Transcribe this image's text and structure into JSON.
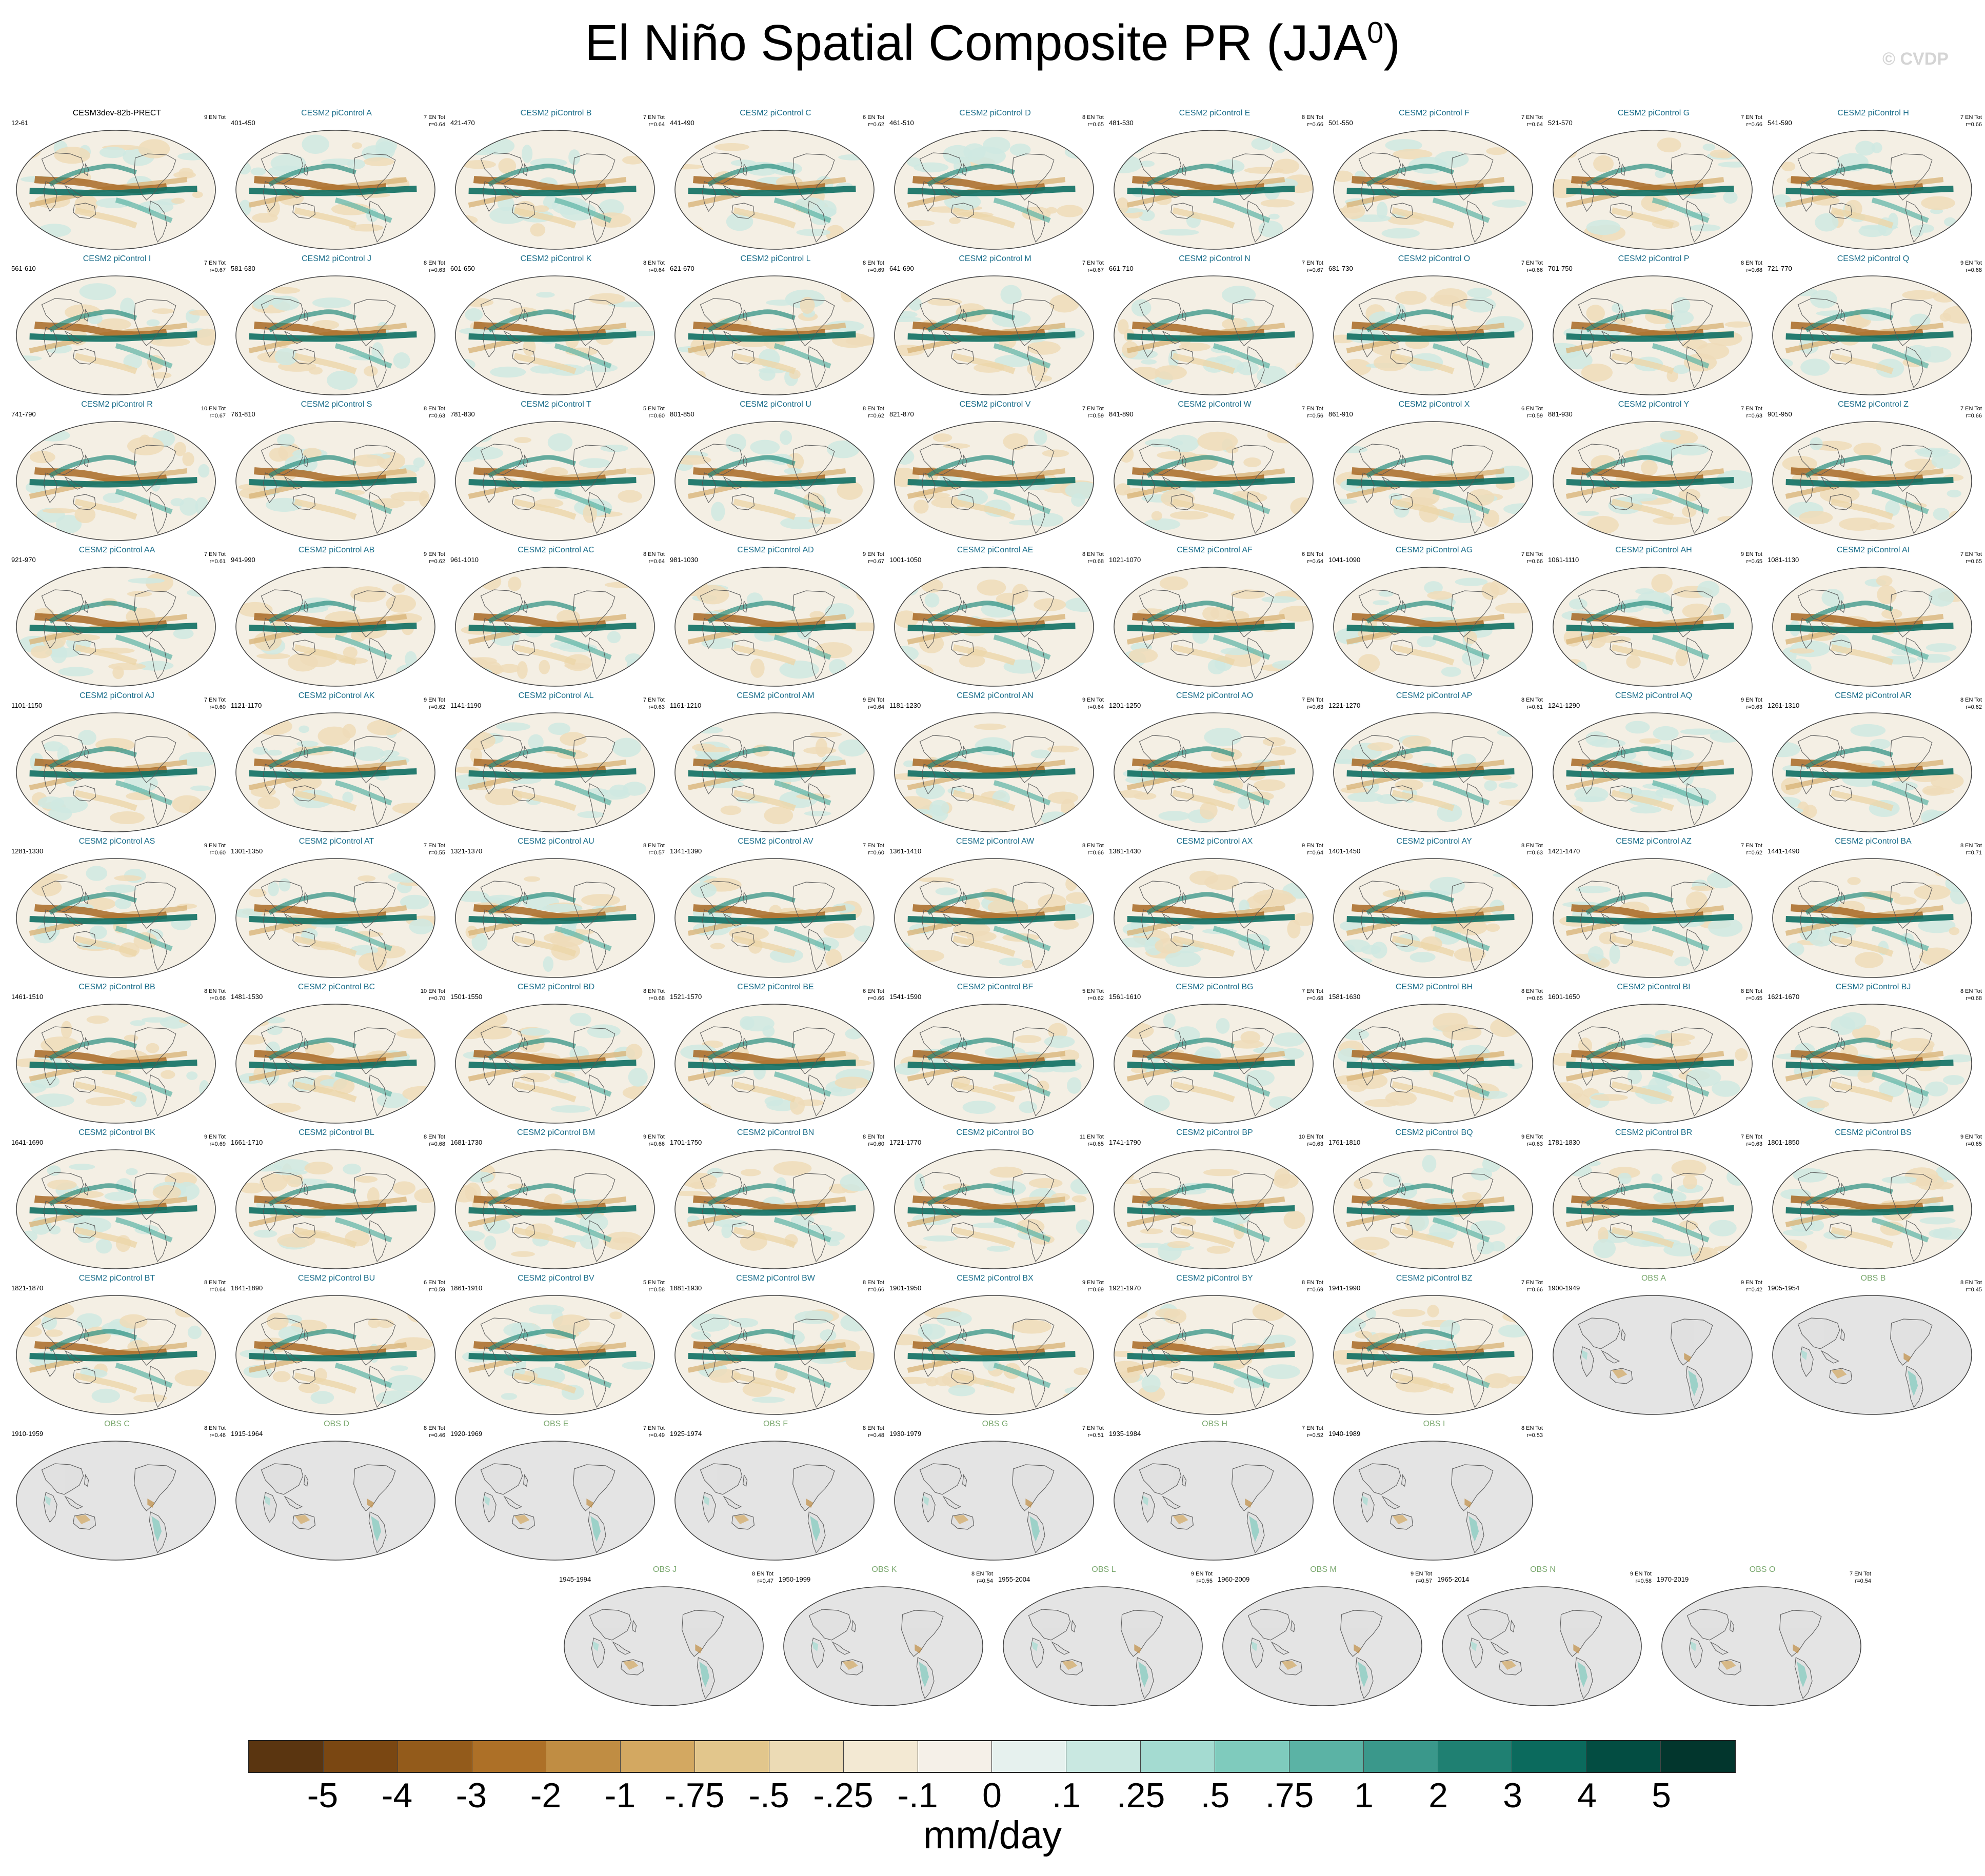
{
  "title": "El Niño Spatial Composite PR (JJA",
  "title_sup": "0",
  "title_close": ")",
  "credit": "© CVDP",
  "panels": [
    {
      "name": "CESM3dev-82b-PRECT",
      "range": "12-61",
      "count": "9 EN Tot",
      "r": "",
      "kind": "cesm3"
    },
    {
      "name": "CESM2 piControl A",
      "range": "401-450",
      "count": "7 EN Tot",
      "r": "r=0.64",
      "kind": "model"
    },
    {
      "name": "CESM2 piControl B",
      "range": "421-470",
      "count": "7 EN Tot",
      "r": "r=0.64",
      "kind": "model"
    },
    {
      "name": "CESM2 piControl C",
      "range": "441-490",
      "count": "6 EN Tot",
      "r": "r=0.62",
      "kind": "model"
    },
    {
      "name": "CESM2 piControl D",
      "range": "461-510",
      "count": "8 EN Tot",
      "r": "r=0.65",
      "kind": "model"
    },
    {
      "name": "CESM2 piControl E",
      "range": "481-530",
      "count": "8 EN Tot",
      "r": "r=0.66",
      "kind": "model"
    },
    {
      "name": "CESM2 piControl F",
      "range": "501-550",
      "count": "7 EN Tot",
      "r": "r=0.64",
      "kind": "model"
    },
    {
      "name": "CESM2 piControl G",
      "range": "521-570",
      "count": "7 EN Tot",
      "r": "r=0.66",
      "kind": "model"
    },
    {
      "name": "CESM2 piControl H",
      "range": "541-590",
      "count": "7 EN Tot",
      "r": "r=0.66",
      "kind": "model"
    },
    {
      "name": "CESM2 piControl I",
      "range": "561-610",
      "count": "7 EN Tot",
      "r": "r=0.67",
      "kind": "model"
    },
    {
      "name": "CESM2 piControl J",
      "range": "581-630",
      "count": "8 EN Tot",
      "r": "r=0.63",
      "kind": "model"
    },
    {
      "name": "CESM2 piControl K",
      "range": "601-650",
      "count": "8 EN Tot",
      "r": "r=0.64",
      "kind": "model"
    },
    {
      "name": "CESM2 piControl L",
      "range": "621-670",
      "count": "8 EN Tot",
      "r": "r=0.69",
      "kind": "model"
    },
    {
      "name": "CESM2 piControl M",
      "range": "641-690",
      "count": "7 EN Tot",
      "r": "r=0.67",
      "kind": "model"
    },
    {
      "name": "CESM2 piControl N",
      "range": "661-710",
      "count": "7 EN Tot",
      "r": "r=0.67",
      "kind": "model"
    },
    {
      "name": "CESM2 piControl O",
      "range": "681-730",
      "count": "7 EN Tot",
      "r": "r=0.66",
      "kind": "model"
    },
    {
      "name": "CESM2 piControl P",
      "range": "701-750",
      "count": "8 EN Tot",
      "r": "r=0.68",
      "kind": "model"
    },
    {
      "name": "CESM2 piControl Q",
      "range": "721-770",
      "count": "9 EN Tot",
      "r": "r=0.68",
      "kind": "model"
    },
    {
      "name": "CESM2 piControl R",
      "range": "741-790",
      "count": "10 EN Tot",
      "r": "r=0.67",
      "kind": "model"
    },
    {
      "name": "CESM2 piControl S",
      "range": "761-810",
      "count": "8 EN Tot",
      "r": "r=0.63",
      "kind": "model"
    },
    {
      "name": "CESM2 piControl T",
      "range": "781-830",
      "count": "5 EN Tot",
      "r": "r=0.60",
      "kind": "model"
    },
    {
      "name": "CESM2 piControl U",
      "range": "801-850",
      "count": "8 EN Tot",
      "r": "r=0.62",
      "kind": "model"
    },
    {
      "name": "CESM2 piControl V",
      "range": "821-870",
      "count": "7 EN Tot",
      "r": "r=0.59",
      "kind": "model"
    },
    {
      "name": "CESM2 piControl W",
      "range": "841-890",
      "count": "7 EN Tot",
      "r": "r=0.56",
      "kind": "model"
    },
    {
      "name": "CESM2 piControl X",
      "range": "861-910",
      "count": "6 EN Tot",
      "r": "r=0.59",
      "kind": "model"
    },
    {
      "name": "CESM2 piControl Y",
      "range": "881-930",
      "count": "7 EN Tot",
      "r": "r=0.63",
      "kind": "model"
    },
    {
      "name": "CESM2 piControl Z",
      "range": "901-950",
      "count": "7 EN Tot",
      "r": "r=0.66",
      "kind": "model"
    },
    {
      "name": "CESM2 piControl AA",
      "range": "921-970",
      "count": "7 EN Tot",
      "r": "r=0.61",
      "kind": "model"
    },
    {
      "name": "CESM2 piControl AB",
      "range": "941-990",
      "count": "9 EN Tot",
      "r": "r=0.62",
      "kind": "model"
    },
    {
      "name": "CESM2 piControl AC",
      "range": "961-1010",
      "count": "8 EN Tot",
      "r": "r=0.64",
      "kind": "model"
    },
    {
      "name": "CESM2 piControl AD",
      "range": "981-1030",
      "count": "9 EN Tot",
      "r": "r=0.67",
      "kind": "model"
    },
    {
      "name": "CESM2 piControl AE",
      "range": "1001-1050",
      "count": "8 EN Tot",
      "r": "r=0.68",
      "kind": "model"
    },
    {
      "name": "CESM2 piControl AF",
      "range": "1021-1070",
      "count": "6 EN Tot",
      "r": "r=0.64",
      "kind": "model"
    },
    {
      "name": "CESM2 piControl AG",
      "range": "1041-1090",
      "count": "7 EN Tot",
      "r": "r=0.66",
      "kind": "model"
    },
    {
      "name": "CESM2 piControl AH",
      "range": "1061-1110",
      "count": "9 EN Tot",
      "r": "r=0.65",
      "kind": "model"
    },
    {
      "name": "CESM2 piControl AI",
      "range": "1081-1130",
      "count": "7 EN Tot",
      "r": "r=0.65",
      "kind": "model"
    },
    {
      "name": "CESM2 piControl AJ",
      "range": "1101-1150",
      "count": "7 EN Tot",
      "r": "r=0.60",
      "kind": "model"
    },
    {
      "name": "CESM2 piControl AK",
      "range": "1121-1170",
      "count": "9 EN Tot",
      "r": "r=0.62",
      "kind": "model"
    },
    {
      "name": "CESM2 piControl AL",
      "range": "1141-1190",
      "count": "7 EN Tot",
      "r": "r=0.63",
      "kind": "model"
    },
    {
      "name": "CESM2 piControl AM",
      "range": "1161-1210",
      "count": "9 EN Tot",
      "r": "r=0.64",
      "kind": "model"
    },
    {
      "name": "CESM2 piControl AN",
      "range": "1181-1230",
      "count": "9 EN Tot",
      "r": "r=0.64",
      "kind": "model"
    },
    {
      "name": "CESM2 piControl AO",
      "range": "1201-1250",
      "count": "7 EN Tot",
      "r": "r=0.63",
      "kind": "model"
    },
    {
      "name": "CESM2 piControl AP",
      "range": "1221-1270",
      "count": "8 EN Tot",
      "r": "r=0.61",
      "kind": "model"
    },
    {
      "name": "CESM2 piControl AQ",
      "range": "1241-1290",
      "count": "9 EN Tot",
      "r": "r=0.63",
      "kind": "model"
    },
    {
      "name": "CESM2 piControl AR",
      "range": "1261-1310",
      "count": "8 EN Tot",
      "r": "r=0.62",
      "kind": "model"
    },
    {
      "name": "CESM2 piControl AS",
      "range": "1281-1330",
      "count": "9 EN Tot",
      "r": "r=0.60",
      "kind": "model"
    },
    {
      "name": "CESM2 piControl AT",
      "range": "1301-1350",
      "count": "7 EN Tot",
      "r": "r=0.55",
      "kind": "model"
    },
    {
      "name": "CESM2 piControl AU",
      "range": "1321-1370",
      "count": "8 EN Tot",
      "r": "r=0.57",
      "kind": "model"
    },
    {
      "name": "CESM2 piControl AV",
      "range": "1341-1390",
      "count": "7 EN Tot",
      "r": "r=0.60",
      "kind": "model"
    },
    {
      "name": "CESM2 piControl AW",
      "range": "1361-1410",
      "count": "8 EN Tot",
      "r": "r=0.66",
      "kind": "model"
    },
    {
      "name": "CESM2 piControl AX",
      "range": "1381-1430",
      "count": "9 EN Tot",
      "r": "r=0.64",
      "kind": "model"
    },
    {
      "name": "CESM2 piControl AY",
      "range": "1401-1450",
      "count": "8 EN Tot",
      "r": "r=0.63",
      "kind": "model"
    },
    {
      "name": "CESM2 piControl AZ",
      "range": "1421-1470",
      "count": "7 EN Tot",
      "r": "r=0.62",
      "kind": "model"
    },
    {
      "name": "CESM2 piControl BA",
      "range": "1441-1490",
      "count": "8 EN Tot",
      "r": "r=0.71",
      "kind": "model"
    },
    {
      "name": "CESM2 piControl BB",
      "range": "1461-1510",
      "count": "8 EN Tot",
      "r": "r=0.66",
      "kind": "model"
    },
    {
      "name": "CESM2 piControl BC",
      "range": "1481-1530",
      "count": "10 EN Tot",
      "r": "r=0.70",
      "kind": "model"
    },
    {
      "name": "CESM2 piControl BD",
      "range": "1501-1550",
      "count": "8 EN Tot",
      "r": "r=0.68",
      "kind": "model"
    },
    {
      "name": "CESM2 piControl BE",
      "range": "1521-1570",
      "count": "6 EN Tot",
      "r": "r=0.66",
      "kind": "model"
    },
    {
      "name": "CESM2 piControl BF",
      "range": "1541-1590",
      "count": "5 EN Tot",
      "r": "r=0.62",
      "kind": "model"
    },
    {
      "name": "CESM2 piControl BG",
      "range": "1561-1610",
      "count": "7 EN Tot",
      "r": "r=0.68",
      "kind": "model"
    },
    {
      "name": "CESM2 piControl BH",
      "range": "1581-1630",
      "count": "8 EN Tot",
      "r": "r=0.65",
      "kind": "model"
    },
    {
      "name": "CESM2 piControl BI",
      "range": "1601-1650",
      "count": "8 EN Tot",
      "r": "r=0.65",
      "kind": "model"
    },
    {
      "name": "CESM2 piControl BJ",
      "range": "1621-1670",
      "count": "8 EN Tot",
      "r": "r=0.68",
      "kind": "model"
    },
    {
      "name": "CESM2 piControl BK",
      "range": "1641-1690",
      "count": "9 EN Tot",
      "r": "r=0.69",
      "kind": "model"
    },
    {
      "name": "CESM2 piControl BL",
      "range": "1661-1710",
      "count": "8 EN Tot",
      "r": "r=0.68",
      "kind": "model"
    },
    {
      "name": "CESM2 piControl BM",
      "range": "1681-1730",
      "count": "9 EN Tot",
      "r": "r=0.66",
      "kind": "model"
    },
    {
      "name": "CESM2 piControl BN",
      "range": "1701-1750",
      "count": "8 EN Tot",
      "r": "r=0.60",
      "kind": "model"
    },
    {
      "name": "CESM2 piControl BO",
      "range": "1721-1770",
      "count": "11 EN Tot",
      "r": "r=0.65",
      "kind": "model"
    },
    {
      "name": "CESM2 piControl BP",
      "range": "1741-1790",
      "count": "10 EN Tot",
      "r": "r=0.63",
      "kind": "model"
    },
    {
      "name": "CESM2 piControl BQ",
      "range": "1761-1810",
      "count": "9 EN Tot",
      "r": "r=0.63",
      "kind": "model"
    },
    {
      "name": "CESM2 piControl BR",
      "range": "1781-1830",
      "count": "7 EN Tot",
      "r": "r=0.63",
      "kind": "model"
    },
    {
      "name": "CESM2 piControl BS",
      "range": "1801-1850",
      "count": "9 EN Tot",
      "r": "r=0.65",
      "kind": "model"
    },
    {
      "name": "CESM2 piControl BT",
      "range": "1821-1870",
      "count": "8 EN Tot",
      "r": "r=0.64",
      "kind": "model"
    },
    {
      "name": "CESM2 piControl BU",
      "range": "1841-1890",
      "count": "6 EN Tot",
      "r": "r=0.59",
      "kind": "model"
    },
    {
      "name": "CESM2 piControl BV",
      "range": "1861-1910",
      "count": "5 EN Tot",
      "r": "r=0.58",
      "kind": "model"
    },
    {
      "name": "CESM2 piControl BW",
      "range": "1881-1930",
      "count": "8 EN Tot",
      "r": "r=0.66",
      "kind": "model"
    },
    {
      "name": "CESM2 piControl BX",
      "range": "1901-1950",
      "count": "9 EN Tot",
      "r": "r=0.69",
      "kind": "model"
    },
    {
      "name": "CESM2 piControl BY",
      "range": "1921-1970",
      "count": "8 EN Tot",
      "r": "r=0.69",
      "kind": "model"
    },
    {
      "name": "CESM2 piControl BZ",
      "range": "1941-1990",
      "count": "7 EN Tot",
      "r": "r=0.66",
      "kind": "model"
    },
    {
      "name": "OBS A",
      "range": "1900-1949",
      "count": "9 EN Tot",
      "r": "r=0.42",
      "kind": "obs"
    },
    {
      "name": "OBS B",
      "range": "1905-1954",
      "count": "8 EN Tot",
      "r": "r=0.45",
      "kind": "obs"
    },
    {
      "name": "OBS C",
      "range": "1910-1959",
      "count": "8 EN Tot",
      "r": "r=0.46",
      "kind": "obs"
    },
    {
      "name": "OBS D",
      "range": "1915-1964",
      "count": "8 EN Tot",
      "r": "r=0.46",
      "kind": "obs"
    },
    {
      "name": "OBS E",
      "range": "1920-1969",
      "count": "7 EN Tot",
      "r": "r=0.49",
      "kind": "obs"
    },
    {
      "name": "OBS F",
      "range": "1925-1974",
      "count": "8 EN Tot",
      "r": "r=0.48",
      "kind": "obs"
    },
    {
      "name": "OBS G",
      "range": "1930-1979",
      "count": "7 EN Tot",
      "r": "r=0.51",
      "kind": "obs"
    },
    {
      "name": "OBS H",
      "range": "1935-1984",
      "count": "7 EN Tot",
      "r": "r=0.52",
      "kind": "obs"
    },
    {
      "name": "OBS I",
      "range": "1940-1989",
      "count": "8 EN Tot",
      "r": "r=0.53",
      "kind": "obs"
    },
    {
      "name": "OBS J",
      "range": "1945-1994",
      "count": "8 EN Tot",
      "r": "r=0.47",
      "kind": "obs"
    },
    {
      "name": "OBS K",
      "range": "1950-1999",
      "count": "8 EN Tot",
      "r": "r=0.54",
      "kind": "obs"
    },
    {
      "name": "OBS L",
      "range": "1955-2004",
      "count": "9 EN Tot",
      "r": "r=0.55",
      "kind": "obs"
    },
    {
      "name": "OBS M",
      "range": "1960-2009",
      "count": "9 EN Tot",
      "r": "r=0.57",
      "kind": "obs"
    },
    {
      "name": "OBS N",
      "range": "1965-2014",
      "count": "9 EN Tot",
      "r": "r=0.58",
      "kind": "obs"
    },
    {
      "name": "OBS O",
      "range": "1970-2019",
      "count": "7 EN Tot",
      "r": "r=0.54",
      "kind": "obs"
    }
  ],
  "colorbar": {
    "units": "mm/day",
    "labels": [
      "-5",
      "-4",
      "-3",
      "-2",
      "-1",
      "-.75",
      "-.5",
      "-.25",
      "-.1",
      "0",
      ".1",
      ".25",
      ".5",
      ".75",
      "1",
      "2",
      "3",
      "4",
      "5"
    ],
    "colors": [
      "#5a3510",
      "#7a4712",
      "#935b1b",
      "#ad7027",
      "#c08d43",
      "#d3a861",
      "#e2c68c",
      "#ecdbb5",
      "#f3e9d3",
      "#f5f0e8",
      "#e6f1ee",
      "#c9e8e1",
      "#a4dbd1",
      "#7fcbbd",
      "#5bb3a5",
      "#3a988b",
      "#1f8072",
      "#0b6a5d",
      "#034d42",
      "#02362d"
    ]
  }
}
